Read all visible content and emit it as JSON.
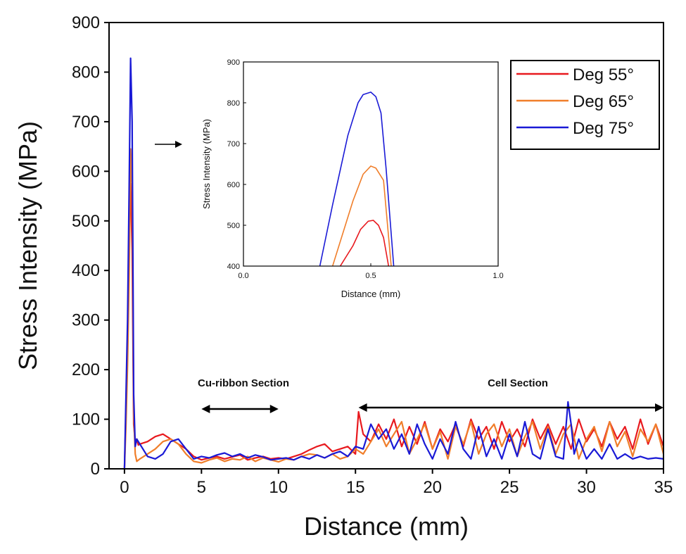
{
  "chart_data": [
    {
      "id": "main",
      "type": "line",
      "xlabel": "Distance (mm)",
      "ylabel": "Stress Intensity (MPa)",
      "xlim": [
        -1,
        35
      ],
      "ylim": [
        0,
        900
      ],
      "xticks": [
        0,
        5,
        10,
        15,
        20,
        25,
        30,
        35
      ],
      "yticks": [
        0,
        100,
        200,
        300,
        400,
        500,
        600,
        700,
        800,
        900
      ],
      "grid": false,
      "legend": {
        "placement": "top-right",
        "entries": [
          "Deg 55°",
          "Deg 65°",
          "Deg 75°"
        ]
      },
      "annotations": [
        {
          "text": "Cu-ribbon Section",
          "range": [
            5,
            10
          ]
        },
        {
          "text": "Cell Section",
          "range": [
            15.2,
            35
          ]
        }
      ],
      "series": [
        {
          "name": "Deg 55°",
          "color": "#e8191e",
          "x": [
            0,
            0.1,
            0.2,
            0.3,
            0.4,
            0.5,
            0.6,
            0.7,
            0.8,
            0.9,
            1.0,
            1.5,
            2.0,
            2.5,
            3.0,
            3.5,
            4.0,
            4.5,
            5.0,
            5.5,
            6.0,
            6.5,
            7.0,
            7.5,
            8.0,
            8.5,
            9.0,
            9.5,
            10.0,
            10.5,
            11.0,
            11.5,
            12.0,
            12.5,
            13.0,
            13.5,
            14.0,
            14.5,
            15.0,
            15.2,
            15.5,
            16.0,
            16.5,
            17.0,
            17.5,
            18.0,
            18.5,
            19.0,
            19.5,
            20.0,
            20.5,
            21.0,
            21.5,
            22.0,
            22.5,
            23.0,
            23.5,
            24.0,
            24.5,
            25.0,
            25.5,
            26.0,
            26.5,
            27.0,
            27.5,
            28.0,
            28.5,
            29.0,
            29.5,
            30.0,
            30.5,
            31.0,
            31.5,
            32.0,
            32.5,
            33.0,
            33.5,
            34.0,
            34.5,
            35.0
          ],
          "y": [
            0,
            120,
            250,
            510,
            575,
            440,
            90,
            55,
            60,
            48,
            50,
            55,
            65,
            70,
            60,
            50,
            40,
            25,
            18,
            22,
            25,
            20,
            24,
            28,
            18,
            22,
            25,
            20,
            22,
            20,
            25,
            30,
            38,
            45,
            50,
            35,
            40,
            45,
            30,
            115,
            70,
            55,
            90,
            60,
            100,
            45,
            85,
            50,
            95,
            40,
            80,
            55,
            90,
            45,
            100,
            60,
            85,
            40,
            95,
            55,
            80,
            45,
            100,
            60,
            90,
            50,
            85,
            40,
            100,
            55,
            80,
            45,
            95,
            60,
            85,
            40,
            100,
            50,
            90,
            45
          ]
        },
        {
          "name": "Deg 65°",
          "color": "#f07e2a",
          "x": [
            0,
            0.1,
            0.2,
            0.3,
            0.4,
            0.5,
            0.6,
            0.7,
            0.8,
            1.0,
            1.5,
            2.0,
            2.5,
            3.0,
            3.5,
            4.0,
            4.5,
            5.0,
            5.5,
            6.0,
            6.5,
            7.0,
            7.5,
            8.0,
            8.5,
            9.0,
            9.5,
            10.0,
            10.5,
            11.0,
            11.5,
            12.0,
            12.5,
            13.0,
            13.5,
            14.0,
            14.5,
            15.0,
            15.5,
            16.0,
            16.5,
            17.0,
            17.5,
            18.0,
            18.5,
            19.0,
            19.5,
            20.0,
            20.5,
            21.0,
            21.5,
            22.0,
            22.5,
            23.0,
            23.5,
            24.0,
            24.5,
            25.0,
            25.5,
            26.0,
            26.5,
            27.0,
            27.5,
            28.0,
            28.5,
            29.0,
            29.5,
            30.0,
            30.5,
            31.0,
            31.5,
            32.0,
            32.5,
            33.0,
            33.5,
            34.0,
            34.5,
            35.0
          ],
          "y": [
            0,
            90,
            210,
            380,
            645,
            560,
            110,
            30,
            15,
            20,
            30,
            40,
            55,
            60,
            50,
            30,
            15,
            12,
            18,
            22,
            15,
            20,
            18,
            25,
            15,
            22,
            18,
            14,
            20,
            18,
            25,
            30,
            28,
            22,
            30,
            20,
            25,
            40,
            30,
            55,
            80,
            45,
            70,
            95,
            30,
            60,
            90,
            40,
            75,
            20,
            85,
            50,
            95,
            30,
            70,
            90,
            45,
            80,
            25,
            65,
            95,
            40,
            85,
            30,
            70,
            90,
            20,
            60,
            85,
            35,
            95,
            45,
            75,
            25,
            80,
            55,
            90,
            30
          ]
        },
        {
          "name": "Deg 75°",
          "color": "#1a1ad6",
          "x": [
            0,
            0.1,
            0.2,
            0.3,
            0.4,
            0.5,
            0.6,
            0.7,
            0.8,
            1.0,
            1.5,
            2.0,
            2.5,
            3.0,
            3.5,
            4.0,
            4.5,
            5.0,
            5.5,
            6.0,
            6.5,
            7.0,
            7.5,
            8.0,
            8.5,
            9.0,
            9.5,
            10.0,
            10.5,
            11.0,
            11.5,
            12.0,
            12.5,
            13.0,
            13.5,
            14.0,
            14.5,
            15.0,
            15.5,
            16.0,
            16.5,
            17.0,
            17.5,
            18.0,
            18.5,
            19.0,
            19.5,
            20.0,
            20.5,
            21.0,
            21.5,
            22.0,
            22.5,
            23.0,
            23.5,
            24.0,
            24.5,
            25.0,
            25.5,
            26.0,
            26.5,
            27.0,
            27.5,
            28.0,
            28.5,
            28.8,
            29.0,
            29.2,
            29.5,
            30.0,
            30.5,
            31.0,
            31.5,
            32.0,
            32.5,
            33.0,
            33.5,
            34.0,
            34.5,
            35.0
          ],
          "y": [
            0,
            150,
            300,
            560,
            828,
            700,
            150,
            45,
            60,
            50,
            25,
            20,
            30,
            55,
            60,
            40,
            20,
            25,
            22,
            28,
            32,
            25,
            30,
            22,
            28,
            24,
            18,
            20,
            22,
            18,
            25,
            20,
            28,
            22,
            30,
            35,
            25,
            45,
            40,
            90,
            60,
            80,
            40,
            70,
            30,
            90,
            50,
            20,
            60,
            30,
            95,
            40,
            20,
            85,
            25,
            60,
            20,
            70,
            25,
            95,
            30,
            20,
            80,
            25,
            20,
            135,
            90,
            30,
            60,
            20,
            40,
            20,
            50,
            20,
            30,
            20,
            25,
            20,
            22,
            20
          ]
        }
      ]
    },
    {
      "id": "inset",
      "type": "line",
      "xlabel": "Distance (mm)",
      "ylabel": "Stress Intensity (MPa)",
      "xlim": [
        0,
        1
      ],
      "ylim": [
        400,
        900
      ],
      "xticks": [
        0.0,
        0.5,
        1.0
      ],
      "xtick_labels": [
        "0.0",
        "0.5",
        "1.0"
      ],
      "yticks": [
        400,
        500,
        600,
        700,
        800,
        900
      ],
      "grid": false,
      "series": [
        {
          "name": "Deg 55°",
          "color": "#e8191e",
          "x": [
            0.38,
            0.43,
            0.46,
            0.49,
            0.51,
            0.53,
            0.55,
            0.57
          ],
          "y": [
            400,
            450,
            490,
            510,
            512,
            500,
            470,
            400
          ]
        },
        {
          "name": "Deg 65°",
          "color": "#f07e2a",
          "x": [
            0.35,
            0.39,
            0.43,
            0.47,
            0.5,
            0.52,
            0.55,
            0.58
          ],
          "y": [
            400,
            480,
            560,
            625,
            645,
            640,
            610,
            400
          ]
        },
        {
          "name": "Deg 75°",
          "color": "#1a1ad6",
          "x": [
            0.3,
            0.35,
            0.41,
            0.45,
            0.47,
            0.5,
            0.52,
            0.54,
            0.56,
            0.59
          ],
          "y": [
            400,
            550,
            720,
            800,
            820,
            826,
            815,
            775,
            640,
            400
          ]
        }
      ]
    }
  ]
}
